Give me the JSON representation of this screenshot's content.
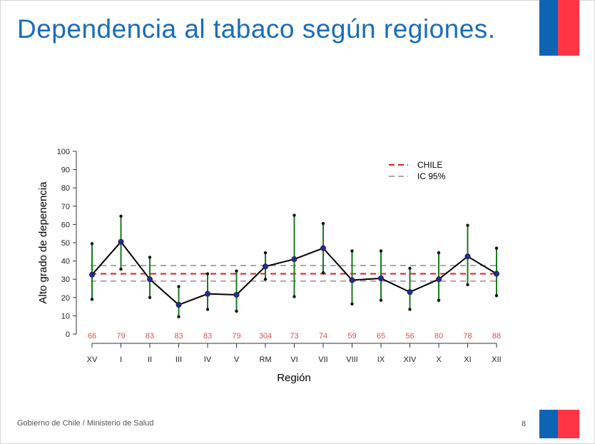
{
  "slide": {
    "title": "Dependencia al tabaco según regiones.",
    "footer": "Gobierno de Chile / Ministerio de Salud",
    "page_number": "8"
  },
  "colors": {
    "title": "#1a6db8",
    "flag_blue": "#0f63b3",
    "flag_red": "#ff3546",
    "line": "#000000",
    "marker": "#2b2b8f",
    "error_bar": "#1a7a1a",
    "chile_line": "#e51a1a",
    "ic_line": "#a8a8a8",
    "n_labels": "#e05050"
  },
  "chart_data": {
    "type": "line",
    "ylabel": "Alto grado de depenencia",
    "xlabel": "Región",
    "ylim": [
      0,
      100
    ],
    "yticks": [
      0,
      10,
      20,
      30,
      40,
      50,
      60,
      70,
      80,
      90,
      100
    ],
    "grid": false,
    "legend_position": "top-right",
    "categories": [
      "XV",
      "I",
      "II",
      "III",
      "IV",
      "V",
      "RM",
      "VI",
      "VII",
      "VIII",
      "IX",
      "XIV",
      "X",
      "XI",
      "XII"
    ],
    "n_labels": [
      "66",
      "79",
      "83",
      "83",
      "83",
      "79",
      "304",
      "73",
      "74",
      "59",
      "65",
      "56",
      "80",
      "78",
      "88"
    ],
    "series": [
      {
        "values": [
          32.5,
          50.5,
          30.0,
          16.0,
          22.0,
          21.5,
          37.0,
          41.0,
          47.0,
          29.5,
          30.5,
          23.0,
          30.0,
          42.5,
          33.0
        ],
        "lower": [
          19.0,
          35.5,
          20.0,
          9.5,
          13.5,
          12.5,
          30.0,
          20.5,
          33.5,
          16.5,
          18.5,
          13.5,
          18.5,
          27.0,
          21.0
        ],
        "upper": [
          49.5,
          64.5,
          42.0,
          26.0,
          33.0,
          34.5,
          44.5,
          65.0,
          60.5,
          45.5,
          45.5,
          36.0,
          44.5,
          59.5,
          47.0
        ]
      }
    ],
    "reference_lines": [
      {
        "name": "CHILE",
        "value": 33.0,
        "style": "dashed",
        "color": "#e51a1a"
      },
      {
        "name": "IC 95%",
        "value": 29.0,
        "style": "dashed",
        "color": "#a8a8a8"
      },
      {
        "name": "IC 95%",
        "value": 37.5,
        "style": "dashed",
        "color": "#a8a8a8"
      }
    ],
    "legend": [
      "CHILE",
      "IC 95%"
    ]
  }
}
